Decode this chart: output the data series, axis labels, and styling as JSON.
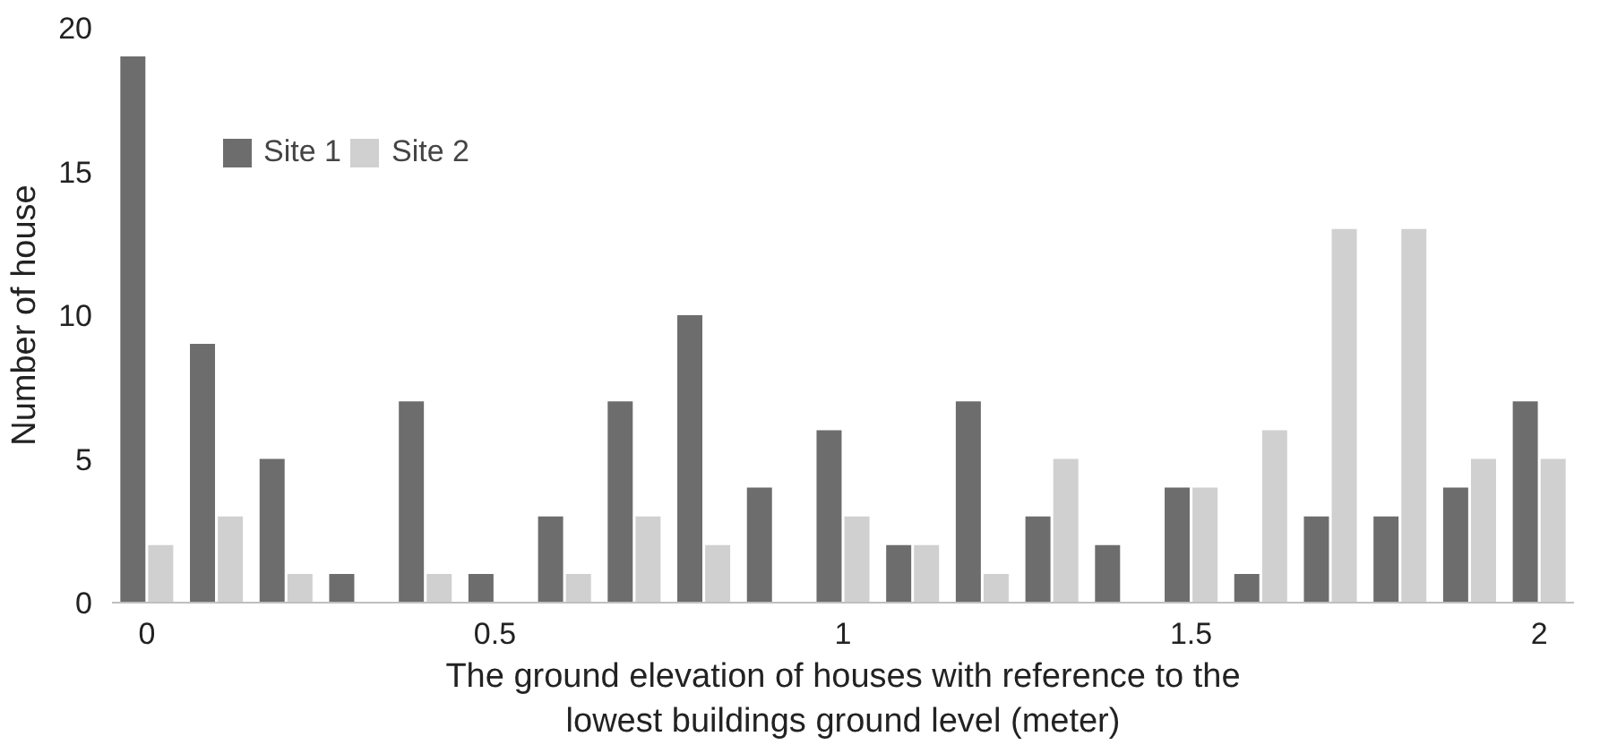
{
  "chart_data": {
    "type": "bar",
    "xlabel": "The ground elevation of houses with reference to the lowest buildings ground level (meter)",
    "ylabel": "Number of house",
    "categories": [
      "0",
      null,
      null,
      null,
      null,
      "0.5",
      null,
      null,
      null,
      null,
      "1",
      null,
      null,
      null,
      null,
      "1.5",
      null,
      null,
      null,
      null,
      "2"
    ],
    "series": [
      {
        "name": "Site 1",
        "color": "#6d6d6d",
        "values": [
          19,
          9,
          5,
          1,
          7,
          1,
          3,
          7,
          10,
          4,
          6,
          2,
          7,
          3,
          2,
          4,
          1,
          3,
          3,
          4,
          7
        ]
      },
      {
        "name": "Site 2",
        "color": "#d0d0d0",
        "values": [
          2,
          3,
          1,
          0,
          1,
          0,
          1,
          3,
          2,
          0,
          3,
          2,
          1,
          5,
          0,
          4,
          6,
          13,
          13,
          5,
          5
        ]
      }
    ],
    "ylim": [
      0,
      20
    ],
    "yticks": [
      0,
      5,
      10,
      15,
      20
    ],
    "grid": false,
    "legend": "top left"
  }
}
